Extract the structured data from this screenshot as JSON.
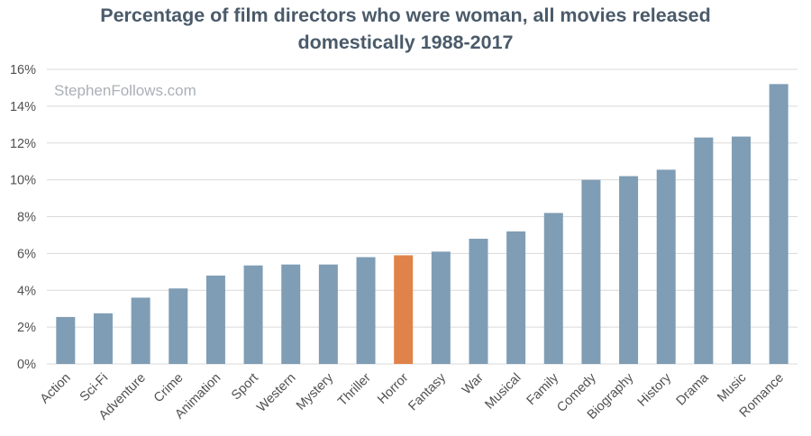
{
  "chart_data": {
    "type": "bar",
    "title_line1": "Percentage of film directors who were woman, all movies released",
    "title_line2": "domestically 1988-2017",
    "watermark": "StephenFollows.com",
    "categories": [
      "Action",
      "Sci-Fi",
      "Adventure",
      "Crime",
      "Animation",
      "Sport",
      "Western",
      "Mystery",
      "Thriller",
      "Horror",
      "Fantasy",
      "War",
      "Musical",
      "Family",
      "Comedy",
      "Biography",
      "History",
      "Drama",
      "Music",
      "Romance"
    ],
    "values": [
      2.55,
      2.75,
      3.6,
      4.1,
      4.8,
      5.35,
      5.4,
      5.4,
      5.8,
      5.9,
      6.1,
      6.8,
      7.2,
      8.2,
      10.0,
      10.2,
      10.55,
      12.3,
      12.35,
      15.2
    ],
    "highlight": "Horror",
    "ylim": [
      0,
      16
    ],
    "yticks": [
      "0%",
      "2%",
      "4%",
      "6%",
      "8%",
      "10%",
      "12%",
      "14%",
      "16%"
    ],
    "xlabel": "",
    "ylabel": "",
    "grid": true,
    "colors": {
      "bar": "#7f9db5",
      "highlight": "#e0834a",
      "grid": "#d9d9d9",
      "title": "#4a5a6a"
    }
  }
}
